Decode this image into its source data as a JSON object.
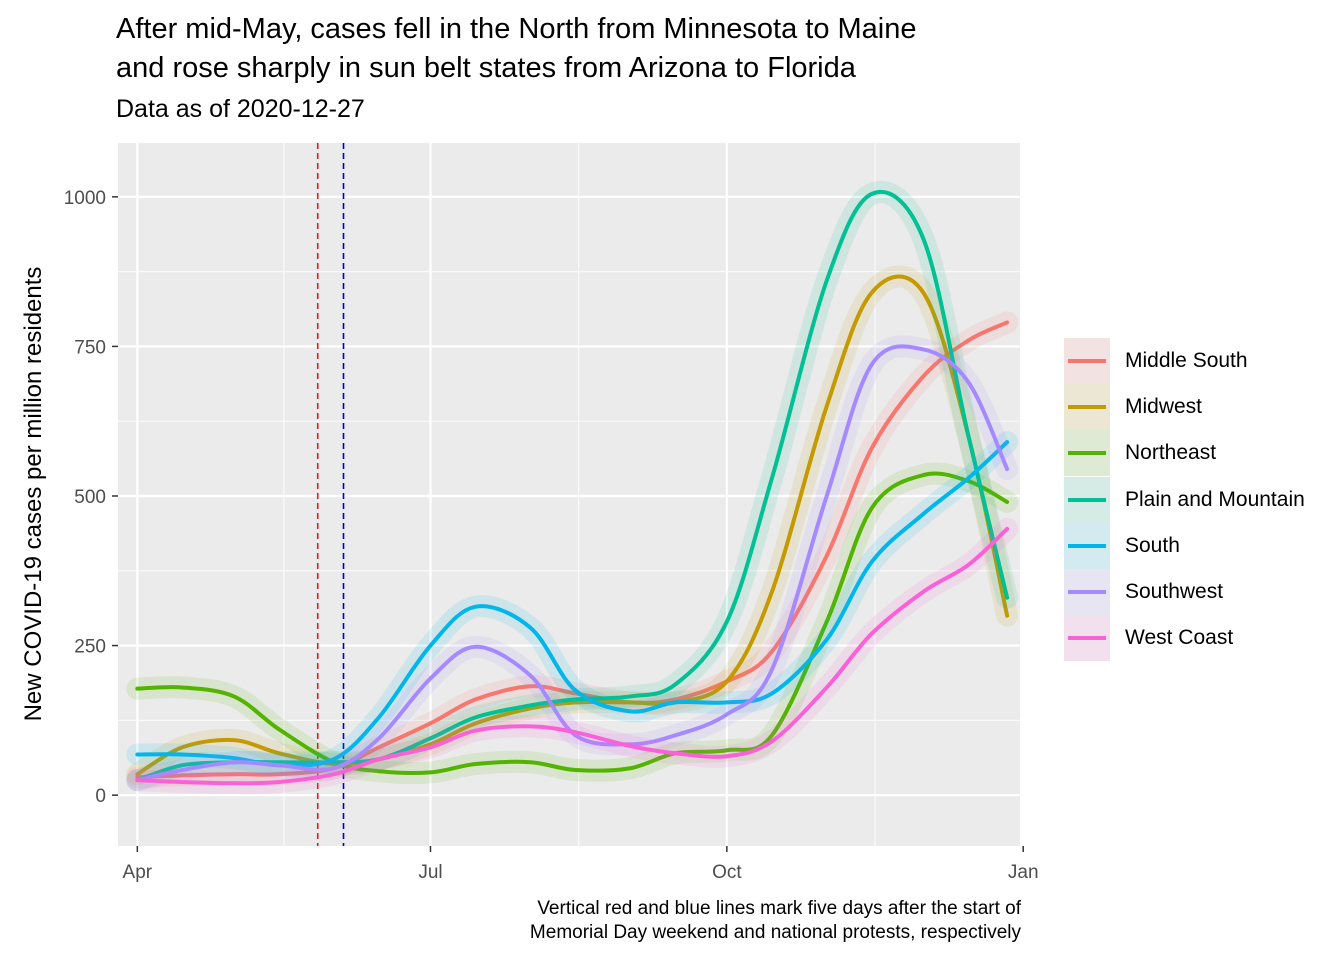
{
  "title_line1": "After mid-May, cases fell in the North from Minnesota to Maine",
  "title_line2": "and rose sharply in sun belt states from Arizona to Florida",
  "subtitle": "Data as of 2020-12-27",
  "caption_line1": "Vertical red and blue lines mark five days after the start of",
  "caption_line2": "Memorial Day weekend and national protests, respectively",
  "chart_data": {
    "type": "line",
    "ylabel": "New COVID-19 cases per million residents",
    "x_tick_labels": [
      "Apr",
      "Jul",
      "Oct",
      "Jan"
    ],
    "x_ticks": [
      "2020-04-01",
      "2020-07-01",
      "2020-10-01",
      "2021-01-01"
    ],
    "xlim": [
      "2020-03-26",
      "2020-12-31"
    ],
    "y_ticks": [
      0,
      250,
      500,
      750,
      1000
    ],
    "ylim": [
      -85,
      1090
    ],
    "grid": true,
    "legend_position": "right",
    "vertical_lines": [
      {
        "x": "2020-05-27",
        "color": "#e41a1c",
        "style": "dashed"
      },
      {
        "x": "2020-06-04",
        "color": "#0000cc",
        "style": "dashed"
      }
    ],
    "x": [
      "2020-04-01",
      "2020-04-15",
      "2020-05-01",
      "2020-05-15",
      "2020-06-01",
      "2020-06-15",
      "2020-07-01",
      "2020-07-15",
      "2020-08-01",
      "2020-08-15",
      "2020-09-01",
      "2020-09-15",
      "2020-10-01",
      "2020-10-15",
      "2020-11-01",
      "2020-11-15",
      "2020-12-01",
      "2020-12-15",
      "2020-12-27"
    ],
    "series": [
      {
        "name": "Middle South",
        "color": "#F8766D",
        "values": [
          30,
          33,
          35,
          35,
          45,
          80,
          120,
          160,
          182,
          170,
          155,
          160,
          190,
          240,
          400,
          580,
          700,
          760,
          790
        ]
      },
      {
        "name": "Midwest",
        "color": "#C49A00",
        "values": [
          35,
          80,
          92,
          70,
          52,
          60,
          85,
          120,
          145,
          155,
          155,
          155,
          190,
          340,
          650,
          840,
          840,
          600,
          300
        ]
      },
      {
        "name": "Northeast",
        "color": "#53B400",
        "values": [
          178,
          180,
          165,
          110,
          55,
          40,
          38,
          52,
          55,
          42,
          45,
          70,
          75,
          100,
          290,
          480,
          535,
          525,
          490
        ]
      },
      {
        "name": "Plain and Mountain",
        "color": "#00C094",
        "values": [
          25,
          50,
          55,
          55,
          55,
          60,
          95,
          130,
          150,
          160,
          165,
          185,
          290,
          530,
          860,
          1005,
          930,
          600,
          330
        ]
      },
      {
        "name": "South",
        "color": "#00B6EB",
        "values": [
          68,
          68,
          62,
          50,
          60,
          130,
          250,
          315,
          280,
          175,
          140,
          155,
          155,
          170,
          260,
          390,
          470,
          530,
          590
        ]
      },
      {
        "name": "Southwest",
        "color": "#A58AFF",
        "values": [
          25,
          42,
          55,
          50,
          45,
          95,
          195,
          248,
          200,
          100,
          85,
          100,
          135,
          210,
          500,
          720,
          745,
          690,
          545
        ]
      },
      {
        "name": "West Coast",
        "color": "#FB61D7",
        "values": [
          25,
          22,
          20,
          22,
          35,
          60,
          80,
          108,
          115,
          105,
          82,
          70,
          65,
          90,
          180,
          270,
          340,
          385,
          445
        ]
      }
    ]
  }
}
